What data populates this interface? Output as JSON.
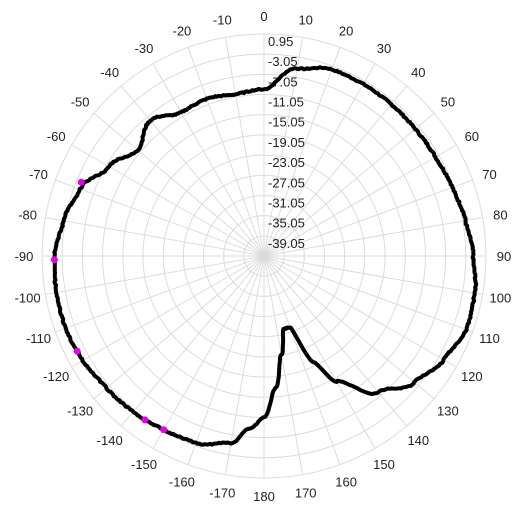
{
  "chart_data": {
    "type": "polar-line",
    "title": "",
    "angle_unit": "degrees",
    "angle_direction": "clockwise",
    "zero_position": "top",
    "angular_ticks": [
      {
        "deg": 0,
        "label": "0"
      },
      {
        "deg": 10,
        "label": "10"
      },
      {
        "deg": 20,
        "label": "20"
      },
      {
        "deg": 30,
        "label": "30"
      },
      {
        "deg": 40,
        "label": "40"
      },
      {
        "deg": 50,
        "label": "50"
      },
      {
        "deg": 60,
        "label": "60"
      },
      {
        "deg": 70,
        "label": "70"
      },
      {
        "deg": 80,
        "label": "80"
      },
      {
        "deg": 90,
        "label": "90"
      },
      {
        "deg": 100,
        "label": "100"
      },
      {
        "deg": 110,
        "label": "110"
      },
      {
        "deg": 120,
        "label": "120"
      },
      {
        "deg": 130,
        "label": "130"
      },
      {
        "deg": 140,
        "label": "140"
      },
      {
        "deg": 150,
        "label": "150"
      },
      {
        "deg": 160,
        "label": "160"
      },
      {
        "deg": 170,
        "label": "170"
      },
      {
        "deg": 180,
        "label": "180"
      },
      {
        "deg": 190,
        "label": "-170"
      },
      {
        "deg": 200,
        "label": "-160"
      },
      {
        "deg": 210,
        "label": "-150"
      },
      {
        "deg": 220,
        "label": "-140"
      },
      {
        "deg": 230,
        "label": "-130"
      },
      {
        "deg": 240,
        "label": "-120"
      },
      {
        "deg": 250,
        "label": "-110"
      },
      {
        "deg": 260,
        "label": "-100"
      },
      {
        "deg": 270,
        "label": "-90"
      },
      {
        "deg": 280,
        "label": "-80"
      },
      {
        "deg": 290,
        "label": "-70"
      },
      {
        "deg": 300,
        "label": "-60"
      },
      {
        "deg": 310,
        "label": "-50"
      },
      {
        "deg": 320,
        "label": "-40"
      },
      {
        "deg": 330,
        "label": "-30"
      },
      {
        "deg": 340,
        "label": "-20"
      },
      {
        "deg": 350,
        "label": "-10"
      }
    ],
    "radial_range": [
      -43.05,
      0.95
    ],
    "radial_ticks": [
      {
        "value": 0.95,
        "label": "0.95"
      },
      {
        "value": -3.05,
        "label": "-3.05"
      },
      {
        "value": -7.05,
        "label": "-7.05"
      },
      {
        "value": -11.05,
        "label": "-11.05"
      },
      {
        "value": -15.05,
        "label": "-15.05"
      },
      {
        "value": -19.05,
        "label": "-19.05"
      },
      {
        "value": -23.05,
        "label": "-23.05"
      },
      {
        "value": -27.05,
        "label": "-27.05"
      },
      {
        "value": -31.05,
        "label": "-31.05"
      },
      {
        "value": -35.05,
        "label": "-35.05"
      },
      {
        "value": -39.05,
        "label": "-39.05"
      }
    ],
    "grid": true,
    "colors": {
      "trace": "#000000",
      "marker": "#e600e6",
      "grid": "#dcdcdc"
    },
    "series": [
      {
        "angles": [
          0,
          10,
          20,
          30,
          40,
          50,
          60,
          70,
          80,
          90,
          100,
          110,
          120,
          130,
          140,
          150,
          155,
          160,
          165,
          170,
          175,
          180,
          185,
          190,
          200,
          210,
          220,
          230,
          240,
          250,
          260,
          270,
          280,
          290,
          300,
          310,
          320,
          330,
          340,
          350
        ],
        "values": [
          -10.0,
          -5.3,
          -3.7,
          -3.7,
          -3.8,
          -3.9,
          -3.8,
          -3.3,
          -2.5,
          -1.6,
          -0.6,
          -0.4,
          -1.9,
          -4.1,
          -7.8,
          -14.3,
          -19.8,
          -28.0,
          -28.0,
          -23.3,
          -16.8,
          -11.0,
          -8.6,
          -5.4,
          -3.6,
          -3.3,
          -2.7,
          -2.3,
          -1.6,
          -1.2,
          -1.3,
          -1.5,
          -2.7,
          -4.3,
          -7.6,
          -10.4,
          -8.0,
          -10.2,
          -9.9,
          -10.5
        ]
      }
    ],
    "markers": [
      {
        "angle": 292,
        "value": -4.0
      },
      {
        "angle": 269,
        "value": -1.5
      },
      {
        "angle": 243,
        "value": -1.5
      },
      {
        "angle": 216,
        "value": -2.9
      },
      {
        "angle": 210,
        "value": -3.3
      }
    ]
  }
}
